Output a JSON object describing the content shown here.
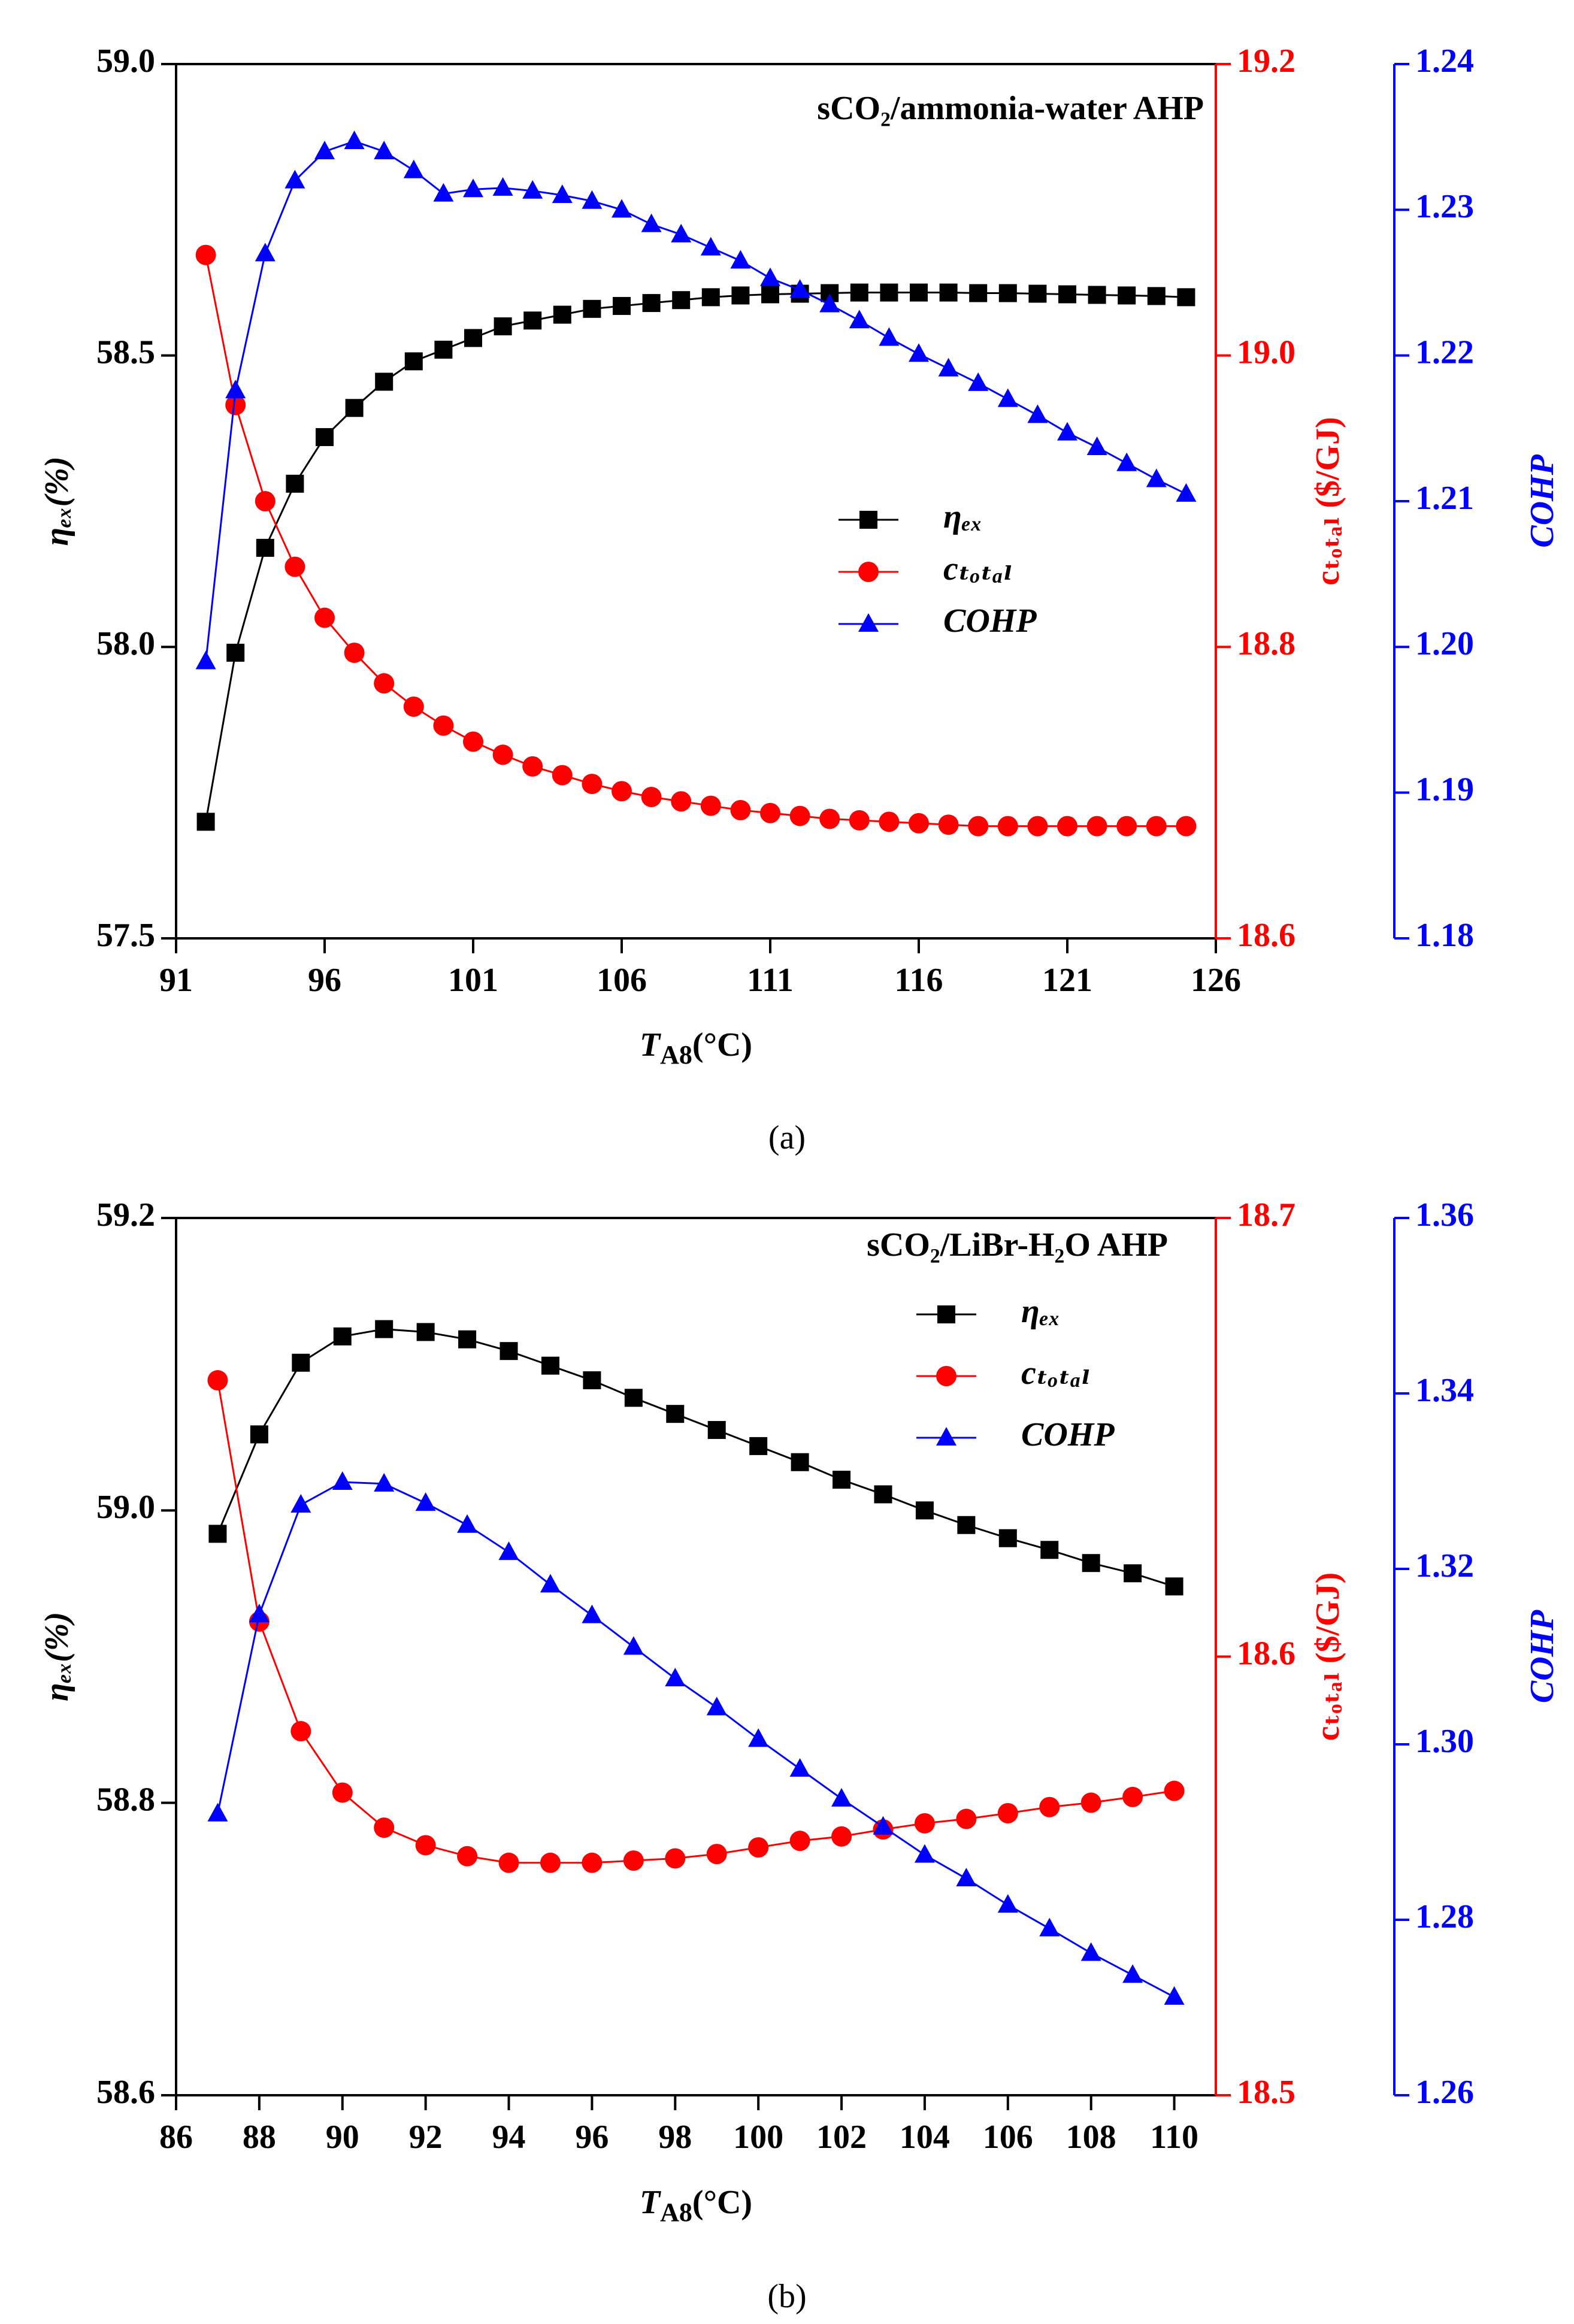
{
  "chart_data": [
    {
      "type": "line",
      "title": "sCO₂/ammonia-water AHP",
      "caption": "(a)",
      "xlabel": {
        "main": "T",
        "sub": "A8",
        "unit": "(°C)"
      },
      "ylabel": "ηₑₓ(%)",
      "y2label": "cₜₒₜₐₗ ($/GJ)",
      "y3label": "COHP",
      "x": [
        92,
        93,
        94,
        95,
        96,
        97,
        98,
        99,
        100,
        101,
        102,
        103,
        104,
        105,
        106,
        107,
        108,
        109,
        110,
        111,
        112,
        113,
        114,
        115,
        116,
        117,
        118,
        119,
        120,
        121,
        122,
        123,
        124,
        125
      ],
      "xlim": [
        91,
        126
      ],
      "xticks": [
        91,
        96,
        101,
        106,
        111,
        116,
        121,
        126
      ],
      "ylim": [
        57.5,
        59.0
      ],
      "yticks": [
        57.5,
        {
          "value": 58,
          "label": "58.0"
        },
        58.5,
        {
          "value": 59,
          "label": "59.0"
        }
      ],
      "y2lim": [
        18.6,
        19.2
      ],
      "y2ticks": [
        18.6,
        18.8,
        {
          "value": 19,
          "label": "19.0"
        },
        19.2
      ],
      "y3lim": [
        1.18,
        1.24
      ],
      "y3ticks": [
        1.18,
        1.19,
        {
          "value": 1.2,
          "label": "1.20"
        },
        1.21,
        1.22,
        1.23,
        1.24
      ],
      "series": [
        {
          "name": "ηₑₓ",
          "color": "#000000",
          "marker": "square",
          "values": [
            57.7,
            57.99,
            58.17,
            58.28,
            58.36,
            58.41,
            58.455,
            58.49,
            58.51,
            58.53,
            58.55,
            58.56,
            58.57,
            58.58,
            58.585,
            58.59,
            58.595,
            58.6,
            58.603,
            58.605,
            58.606,
            58.607,
            58.608,
            58.608,
            58.608,
            58.608,
            58.607,
            58.607,
            58.606,
            58.605,
            58.604,
            58.603,
            58.602,
            58.6
          ]
        },
        {
          "name": "cₜₒₜₐₗ",
          "color": "#ff0000",
          "marker": "circle",
          "axis": "y2",
          "values": [
            19.069,
            18.966,
            18.9,
            18.855,
            18.82,
            18.796,
            18.775,
            18.759,
            18.746,
            18.735,
            18.726,
            18.718,
            18.712,
            18.706,
            18.701,
            18.697,
            18.694,
            18.691,
            18.688,
            18.686,
            18.684,
            18.682,
            18.681,
            18.68,
            18.679,
            18.678,
            18.677,
            18.677,
            18.677,
            18.677,
            18.677,
            18.677,
            18.677,
            18.677
          ]
        },
        {
          "name": "COHP",
          "color": "#0000ff",
          "marker": "triangle",
          "axis": "y3",
          "values": [
            1.199,
            1.2176,
            1.227,
            1.232,
            1.234,
            1.2347,
            1.234,
            1.2327,
            1.2311,
            1.2314,
            1.2315,
            1.2313,
            1.231,
            1.2306,
            1.23,
            1.229,
            1.2283,
            1.2274,
            1.2265,
            1.2253,
            1.2245,
            1.2235,
            1.2224,
            1.2212,
            1.2201,
            1.2191,
            1.2181,
            1.217,
            1.2159,
            1.2147,
            1.2137,
            1.2126,
            1.2115,
            1.2105
          ]
        }
      ]
    },
    {
      "type": "line",
      "title": "sCO₂/LiBr-H₂O AHP",
      "caption": "(b)",
      "xlabel": {
        "main": "T",
        "sub": "A8",
        "unit": "(°C)"
      },
      "ylabel": "ηₑₓ(%)",
      "y2label": "cₜₒₜₐₗ ($/GJ)",
      "y3label": "COHP",
      "x": [
        87,
        88,
        89,
        90,
        91,
        92,
        93,
        94,
        95,
        96,
        97,
        98,
        99,
        100,
        101,
        102,
        103,
        104,
        105,
        106,
        107,
        108,
        109,
        110
      ],
      "xlim": [
        86,
        111
      ],
      "xticks": [
        86,
        88,
        90,
        92,
        94,
        96,
        98,
        100,
        102,
        104,
        106,
        108,
        110
      ],
      "ylim": [
        58.6,
        59.2
      ],
      "yticks": [
        58.6,
        58.8,
        {
          "value": 59,
          "label": "59.0"
        },
        59.2
      ],
      "y2lim": [
        18.5,
        18.7
      ],
      "y2ticks": [
        18.5,
        18.6,
        18.7
      ],
      "y3lim": [
        1.26,
        1.36
      ],
      "y3ticks": [
        1.26,
        1.28,
        {
          "value": 1.3,
          "label": "1.30"
        },
        1.32,
        1.34,
        1.36
      ],
      "series": [
        {
          "name": "ηₑₓ",
          "color": "#000000",
          "marker": "square",
          "values": [
            58.984,
            59.052,
            59.101,
            59.119,
            59.124,
            59.122,
            59.117,
            59.109,
            59.099,
            59.089,
            59.077,
            59.066,
            59.055,
            59.044,
            59.033,
            59.021,
            59.011,
            59.0,
            58.99,
            58.981,
            58.973,
            58.964,
            58.957,
            58.948
          ]
        },
        {
          "name": "cₜₒₜₐₗ",
          "color": "#ff0000",
          "marker": "circle",
          "axis": "y2",
          "values": [
            18.663,
            18.608,
            18.583,
            18.569,
            18.561,
            18.557,
            18.5545,
            18.553,
            18.553,
            18.553,
            18.5535,
            18.554,
            18.555,
            18.5565,
            18.558,
            18.559,
            18.5606,
            18.562,
            18.563,
            18.5643,
            18.5657,
            18.5667,
            18.568,
            18.5694
          ]
        },
        {
          "name": "COHP",
          "color": "#0000ff",
          "marker": "triangle",
          "axis": "y3",
          "values": [
            1.2921,
            1.3148,
            1.3273,
            1.3299,
            1.3297,
            1.3275,
            1.325,
            1.3219,
            1.3182,
            1.3147,
            1.3111,
            1.3075,
            1.3042,
            1.3006,
            1.2972,
            1.2938,
            1.2906,
            1.2874,
            1.2847,
            1.2817,
            1.279,
            1.2762,
            1.2737,
            1.2712
          ]
        }
      ]
    }
  ]
}
